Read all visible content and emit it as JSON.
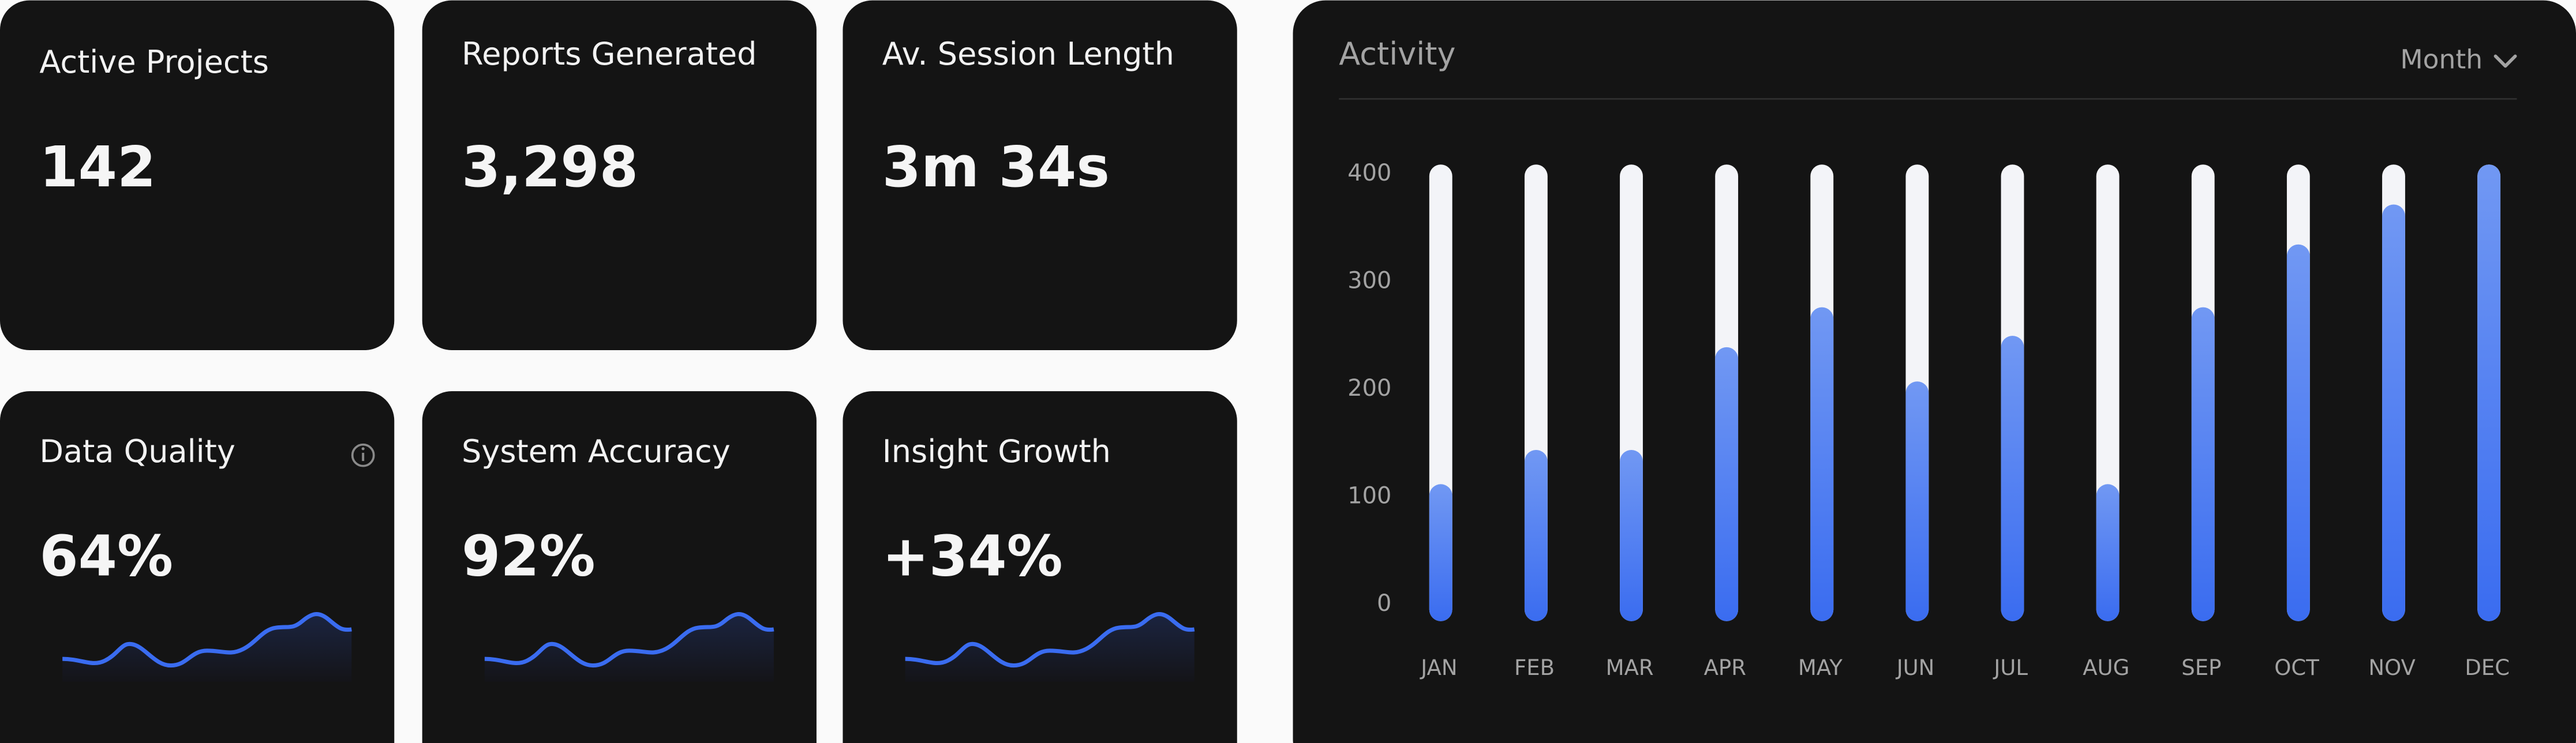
{
  "cards": [
    {
      "title": "Active Projects",
      "value": "142"
    },
    {
      "title": "Reports Generated",
      "value": "3,298"
    },
    {
      "title": "Av. Session Length",
      "value": "3m 34s"
    },
    {
      "title": "Data Quality",
      "value": "64%"
    },
    {
      "title": "System Accuracy",
      "value": "92%"
    },
    {
      "title": "Insight Growth",
      "value": "+34%"
    }
  ],
  "chart_data": {
    "type": "bar",
    "title": "Activity",
    "period": "Month",
    "categories": [
      "JAN",
      "FEB",
      "MAR",
      "APR",
      "MAY",
      "JUN",
      "JUL",
      "AUG",
      "SEP",
      "OCT",
      "NOV",
      "DEC"
    ],
    "values": [
      120,
      150,
      150,
      240,
      275,
      210,
      250,
      120,
      275,
      330,
      365,
      400
    ],
    "color": "#4a7af2",
    "ylim": [
      0,
      400
    ],
    "yticks": [
      0,
      100,
      200,
      300,
      400
    ]
  }
}
